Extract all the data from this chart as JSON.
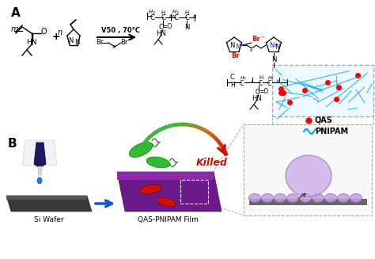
{
  "title_A": "A",
  "title_B": "B",
  "label_si_wafer": "Si Wafer",
  "label_qas_pnipam_film": "QAS-PNIPAM Film",
  "label_killed": "Killed",
  "label_qas": "QAS",
  "label_pnipam": "PNIPAM",
  "reaction_condition": "V50 , 70°C",
  "bg_color": "#ffffff"
}
